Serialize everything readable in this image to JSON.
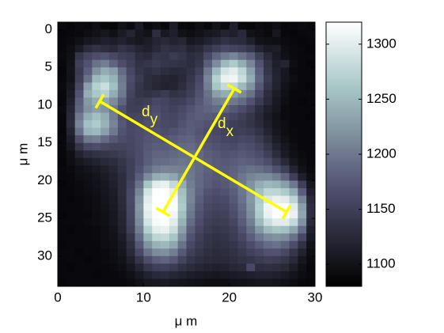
{
  "chart_data": {
    "type": "heatmap",
    "xlabel": "μ m",
    "ylabel": "μ m",
    "xlim": [
      0,
      30
    ],
    "ylim": [
      -1,
      34
    ],
    "y_reversed": true,
    "xticks": [
      0,
      10,
      20,
      30
    ],
    "yticks": [
      0,
      5,
      10,
      15,
      20,
      25,
      30
    ],
    "colormap": "bone",
    "clim": [
      1080,
      1320
    ],
    "cticks": [
      1100,
      1150,
      1200,
      1250,
      1300
    ],
    "annotations": [
      {
        "text": "d",
        "subscript": "y"
      },
      {
        "text": "d",
        "subscript": "x"
      }
    ],
    "z": [
      [
        1090,
        1088,
        1092,
        1090,
        1095,
        1090,
        1088,
        1100,
        1092,
        1110,
        1090,
        1095,
        1090,
        1112,
        1090,
        1088,
        1095,
        1090,
        1100,
        1092,
        1115,
        1090,
        1088,
        1092,
        1090,
        1095,
        1088,
        1090,
        1092,
        1090
      ],
      [
        1088,
        1090,
        1092,
        1095,
        1100,
        1105,
        1098,
        1110,
        1120,
        1105,
        1100,
        1130,
        1108,
        1115,
        1100,
        1095,
        1100,
        1105,
        1110,
        1120,
        1115,
        1125,
        1100,
        1095,
        1092,
        1105,
        1090,
        1088,
        1090,
        1092
      ],
      [
        1090,
        1092,
        1098,
        1105,
        1110,
        1115,
        1112,
        1118,
        1110,
        1105,
        1112,
        1120,
        1125,
        1118,
        1122,
        1105,
        1110,
        1118,
        1125,
        1135,
        1130,
        1128,
        1115,
        1100,
        1098,
        1095,
        1092,
        1090,
        1088,
        1090
      ],
      [
        1090,
        1095,
        1110,
        1128,
        1135,
        1130,
        1125,
        1138,
        1130,
        1120,
        1115,
        1125,
        1135,
        1130,
        1132,
        1120,
        1125,
        1140,
        1150,
        1160,
        1155,
        1150,
        1140,
        1120,
        1110,
        1112,
        1095,
        1092,
        1090,
        1088
      ],
      [
        1092,
        1098,
        1140,
        1155,
        1165,
        1170,
        1160,
        1150,
        1145,
        1130,
        1125,
        1140,
        1138,
        1145,
        1140,
        1130,
        1135,
        1160,
        1185,
        1200,
        1210,
        1195,
        1180,
        1150,
        1125,
        1110,
        1098,
        1092,
        1090,
        1090
      ],
      [
        1090,
        1100,
        1150,
        1170,
        1195,
        1205,
        1185,
        1165,
        1150,
        1135,
        1140,
        1145,
        1140,
        1138,
        1135,
        1130,
        1140,
        1180,
        1215,
        1250,
        1265,
        1240,
        1210,
        1170,
        1135,
        1115,
        1120,
        1095,
        1090,
        1088
      ],
      [
        1088,
        1102,
        1145,
        1180,
        1220,
        1240,
        1230,
        1190,
        1160,
        1140,
        1132,
        1138,
        1130,
        1125,
        1128,
        1135,
        1150,
        1200,
        1250,
        1290,
        1300,
        1275,
        1230,
        1180,
        1140,
        1118,
        1105,
        1092,
        1090,
        1090
      ],
      [
        1090,
        1100,
        1150,
        1195,
        1250,
        1260,
        1245,
        1200,
        1165,
        1145,
        1130,
        1125,
        1120,
        1118,
        1125,
        1140,
        1160,
        1210,
        1270,
        1305,
        1310,
        1285,
        1240,
        1185,
        1145,
        1120,
        1105,
        1095,
        1090,
        1090
      ],
      [
        1092,
        1105,
        1160,
        1230,
        1270,
        1285,
        1255,
        1205,
        1160,
        1140,
        1130,
        1122,
        1118,
        1120,
        1130,
        1145,
        1165,
        1205,
        1260,
        1280,
        1275,
        1250,
        1220,
        1175,
        1140,
        1118,
        1100,
        1092,
        1090,
        1088
      ],
      [
        1090,
        1110,
        1170,
        1240,
        1262,
        1270,
        1240,
        1200,
        1155,
        1140,
        1135,
        1140,
        1145,
        1135,
        1140,
        1150,
        1170,
        1195,
        1230,
        1240,
        1230,
        1215,
        1195,
        1160,
        1130,
        1112,
        1098,
        1090,
        1090,
        1090
      ],
      [
        1090,
        1115,
        1180,
        1225,
        1240,
        1235,
        1215,
        1185,
        1150,
        1145,
        1150,
        1160,
        1155,
        1148,
        1150,
        1160,
        1175,
        1190,
        1205,
        1210,
        1200,
        1190,
        1170,
        1145,
        1125,
        1108,
        1095,
        1090,
        1088,
        1090
      ],
      [
        1092,
        1120,
        1185,
        1220,
        1230,
        1220,
        1200,
        1170,
        1150,
        1150,
        1160,
        1165,
        1158,
        1152,
        1160,
        1170,
        1180,
        1185,
        1190,
        1185,
        1175,
        1165,
        1150,
        1130,
        1115,
        1105,
        1092,
        1090,
        1090,
        1090
      ],
      [
        1090,
        1125,
        1200,
        1240,
        1255,
        1240,
        1205,
        1170,
        1155,
        1158,
        1165,
        1170,
        1160,
        1158,
        1165,
        1175,
        1180,
        1178,
        1175,
        1165,
        1160,
        1150,
        1140,
        1125,
        1110,
        1100,
        1092,
        1090,
        1090,
        1088
      ],
      [
        1090,
        1128,
        1210,
        1255,
        1265,
        1245,
        1210,
        1175,
        1160,
        1162,
        1168,
        1165,
        1162,
        1160,
        1170,
        1178,
        1175,
        1170,
        1165,
        1155,
        1150,
        1145,
        1138,
        1128,
        1115,
        1102,
        1095,
        1090,
        1090,
        1090
      ],
      [
        1088,
        1120,
        1195,
        1245,
        1250,
        1230,
        1200,
        1170,
        1162,
        1165,
        1170,
        1168,
        1165,
        1170,
        1175,
        1180,
        1172,
        1165,
        1160,
        1152,
        1148,
        1150,
        1145,
        1135,
        1120,
        1105,
        1095,
        1092,
        1090,
        1090
      ],
      [
        1090,
        1112,
        1165,
        1200,
        1205,
        1190,
        1175,
        1165,
        1160,
        1165,
        1172,
        1175,
        1172,
        1178,
        1182,
        1185,
        1175,
        1168,
        1165,
        1158,
        1155,
        1160,
        1158,
        1145,
        1130,
        1112,
        1100,
        1092,
        1090,
        1090
      ],
      [
        1090,
        1105,
        1140,
        1160,
        1165,
        1160,
        1155,
        1155,
        1158,
        1165,
        1175,
        1180,
        1178,
        1182,
        1188,
        1190,
        1182,
        1175,
        1170,
        1165,
        1162,
        1168,
        1165,
        1155,
        1140,
        1120,
        1105,
        1095,
        1090,
        1090
      ],
      [
        1090,
        1098,
        1118,
        1130,
        1135,
        1140,
        1142,
        1148,
        1155,
        1165,
        1178,
        1185,
        1185,
        1188,
        1192,
        1195,
        1188,
        1180,
        1175,
        1170,
        1172,
        1175,
        1172,
        1165,
        1150,
        1130,
        1110,
        1098,
        1092,
        1090
      ],
      [
        1088,
        1095,
        1105,
        1112,
        1118,
        1125,
        1130,
        1140,
        1150,
        1165,
        1180,
        1190,
        1192,
        1195,
        1198,
        1195,
        1190,
        1182,
        1178,
        1175,
        1178,
        1182,
        1180,
        1175,
        1165,
        1145,
        1125,
        1105,
        1095,
        1090
      ],
      [
        1090,
        1092,
        1098,
        1102,
        1108,
        1115,
        1122,
        1135,
        1150,
        1170,
        1190,
        1205,
        1210,
        1208,
        1205,
        1198,
        1190,
        1182,
        1178,
        1178,
        1182,
        1190,
        1195,
        1192,
        1185,
        1170,
        1150,
        1120,
        1100,
        1092
      ],
      [
        1090,
        1090,
        1095,
        1098,
        1102,
        1110,
        1118,
        1130,
        1150,
        1180,
        1215,
        1240,
        1245,
        1235,
        1215,
        1200,
        1188,
        1180,
        1175,
        1178,
        1185,
        1198,
        1210,
        1215,
        1215,
        1205,
        1185,
        1150,
        1115,
        1095
      ],
      [
        1088,
        1090,
        1092,
        1095,
        1100,
        1105,
        1115,
        1130,
        1155,
        1195,
        1260,
        1300,
        1305,
        1280,
        1240,
        1205,
        1188,
        1178,
        1172,
        1175,
        1185,
        1200,
        1220,
        1240,
        1250,
        1245,
        1230,
        1200,
        1150,
        1105
      ],
      [
        1090,
        1090,
        1092,
        1094,
        1098,
        1104,
        1112,
        1130,
        1160,
        1210,
        1290,
        1318,
        1320,
        1305,
        1255,
        1210,
        1185,
        1170,
        1165,
        1170,
        1180,
        1198,
        1222,
        1255,
        1275,
        1275,
        1265,
        1240,
        1180,
        1115
      ],
      [
        1090,
        1088,
        1090,
        1092,
        1096,
        1102,
        1110,
        1128,
        1162,
        1220,
        1300,
        1320,
        1320,
        1315,
        1260,
        1210,
        1180,
        1165,
        1160,
        1162,
        1175,
        1195,
        1225,
        1265,
        1295,
        1305,
        1300,
        1275,
        1210,
        1125
      ],
      [
        1090,
        1090,
        1090,
        1092,
        1095,
        1100,
        1108,
        1125,
        1160,
        1225,
        1305,
        1320,
        1320,
        1318,
        1265,
        1205,
        1175,
        1160,
        1155,
        1158,
        1170,
        1190,
        1220,
        1270,
        1310,
        1320,
        1320,
        1300,
        1230,
        1130
      ],
      [
        1088,
        1090,
        1090,
        1090,
        1094,
        1098,
        1106,
        1122,
        1158,
        1220,
        1300,
        1318,
        1320,
        1310,
        1255,
        1198,
        1170,
        1155,
        1150,
        1152,
        1165,
        1185,
        1215,
        1265,
        1305,
        1320,
        1320,
        1305,
        1235,
        1130
      ],
      [
        1090,
        1090,
        1090,
        1092,
        1094,
        1098,
        1105,
        1120,
        1155,
        1215,
        1290,
        1315,
        1318,
        1300,
        1245,
        1190,
        1165,
        1150,
        1145,
        1148,
        1158,
        1178,
        1205,
        1250,
        1285,
        1300,
        1300,
        1280,
        1220,
        1125
      ],
      [
        1090,
        1088,
        1090,
        1090,
        1092,
        1096,
        1102,
        1118,
        1150,
        1205,
        1270,
        1300,
        1305,
        1285,
        1230,
        1180,
        1158,
        1145,
        1140,
        1142,
        1150,
        1168,
        1192,
        1225,
        1250,
        1260,
        1255,
        1235,
        1190,
        1115
      ],
      [
        1090,
        1090,
        1090,
        1090,
        1092,
        1095,
        1100,
        1112,
        1140,
        1190,
        1245,
        1275,
        1280,
        1260,
        1215,
        1170,
        1150,
        1140,
        1135,
        1138,
        1145,
        1160,
        1180,
        1200,
        1215,
        1220,
        1215,
        1195,
        1160,
        1108
      ],
      [
        1088,
        1090,
        1090,
        1090,
        1090,
        1094,
        1098,
        1108,
        1132,
        1175,
        1220,
        1245,
        1250,
        1235,
        1195,
        1160,
        1145,
        1138,
        1132,
        1135,
        1140,
        1150,
        1165,
        1178,
        1190,
        1195,
        1185,
        1165,
        1135,
        1100
      ],
      [
        1090,
        1090,
        1088,
        1090,
        1090,
        1092,
        1096,
        1104,
        1125,
        1160,
        1195,
        1215,
        1218,
        1205,
        1175,
        1150,
        1140,
        1132,
        1128,
        1130,
        1135,
        1142,
        1152,
        1160,
        1168,
        1170,
        1160,
        1140,
        1118,
        1095
      ],
      [
        1090,
        1090,
        1090,
        1088,
        1090,
        1092,
        1094,
        1100,
        1115,
        1140,
        1165,
        1180,
        1185,
        1175,
        1155,
        1140,
        1132,
        1128,
        1125,
        1126,
        1130,
        1135,
        1140,
        1145,
        1150,
        1148,
        1140,
        1125,
        1105,
        1092
      ],
      [
        1090,
        1088,
        1090,
        1090,
        1090,
        1090,
        1092,
        1096,
        1105,
        1120,
        1140,
        1150,
        1152,
        1145,
        1135,
        1128,
        1122,
        1118,
        1115,
        1118,
        1122,
        1125,
        1160,
        1130,
        1132,
        1130,
        1125,
        1112,
        1098,
        1090
      ],
      [
        1090,
        1090,
        1090,
        1090,
        1088,
        1090,
        1090,
        1092,
        1098,
        1108,
        1118,
        1125,
        1128,
        1122,
        1118,
        1112,
        1110,
        1108,
        1105,
        1108,
        1110,
        1112,
        1115,
        1118,
        1118,
        1115,
        1110,
        1102,
        1094,
        1090
      ],
      [
        1088,
        1090,
        1090,
        1090,
        1090,
        1090,
        1090,
        1090,
        1092,
        1098,
        1105,
        1108,
        1110,
        1106,
        1102,
        1100,
        1098,
        1096,
        1095,
        1096,
        1098,
        1100,
        1102,
        1104,
        1104,
        1102,
        1098,
        1094,
        1090,
        1088
      ]
    ]
  }
}
